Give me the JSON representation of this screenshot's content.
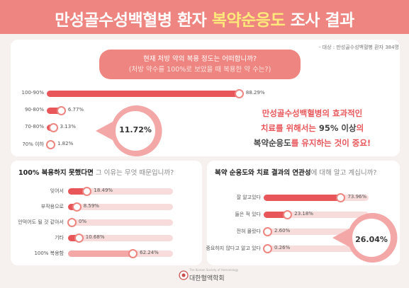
{
  "header": {
    "title_pre": "만성골수성백혈병 환자 ",
    "title_highlight": "복약순응도",
    "title_post": " 조사 결과"
  },
  "note": "- 대상 : 만성골수성백혈병 환자 384명",
  "message": {
    "line1": "만성골수성백혈병의 효과적인",
    "line2_pre": "치료를 위해서는 ",
    "line2_hl": "95% 이상",
    "line2_post": "의",
    "line3_hl": "복약순응도",
    "line3_post": "를 유지하는 것이 중요!"
  },
  "chart_data": [
    {
      "type": "bar",
      "title": "현재 처방 약의 복용 정도는 어떠합니까?",
      "subtitle": "(처방 약수를 100%로 보았을 때 복용한 약 수는?)",
      "categories": [
        "100-90%",
        "90-80%",
        "70-80%",
        "70% 이하"
      ],
      "values": [
        88.29,
        6.77,
        3.13,
        1.82
      ],
      "value_labels": [
        "88.29%",
        "6.77%",
        "3.13%",
        "1.82%"
      ],
      "callout": "11.72%",
      "xlim": [
        0,
        100
      ]
    },
    {
      "type": "bar",
      "title_bold": "100% 복용하지 못했다면",
      "title_rest": " 그 이유는 무엇 때문입니까?",
      "categories": [
        "잊어서",
        "부작용으로",
        "안먹어도 될 것 같아서",
        "기타",
        "100% 복용함"
      ],
      "values": [
        18.49,
        8.59,
        0,
        10.68,
        62.24
      ],
      "value_labels": [
        "18.49%",
        "8.59%",
        "0%",
        "10.68%",
        "62.24%"
      ],
      "xlim": [
        0,
        100
      ]
    },
    {
      "type": "bar",
      "title_bold": "복약 순응도와 치료 결과의 연관성",
      "title_rest": "에 대해 알고 계십니까?",
      "categories": [
        "잘 알고있다",
        "들은 적 있다",
        "전혀 몰랐다",
        "중요하지 않다고 알고 있다"
      ],
      "values": [
        73.96,
        23.18,
        2.6,
        0.26
      ],
      "value_labels": [
        "73.96%",
        "23.18%",
        "2.60%",
        "0.26%"
      ],
      "callout": "26.04%",
      "xlim": [
        0,
        100
      ]
    }
  ],
  "logo": {
    "name": "대한혈액학회",
    "tagline": "The Korean Society of Hematology"
  },
  "colors": {
    "accent": "#ee8580",
    "bar": "#e9565a",
    "track": "#f7dcdb",
    "highlight": "#ffe97a"
  }
}
